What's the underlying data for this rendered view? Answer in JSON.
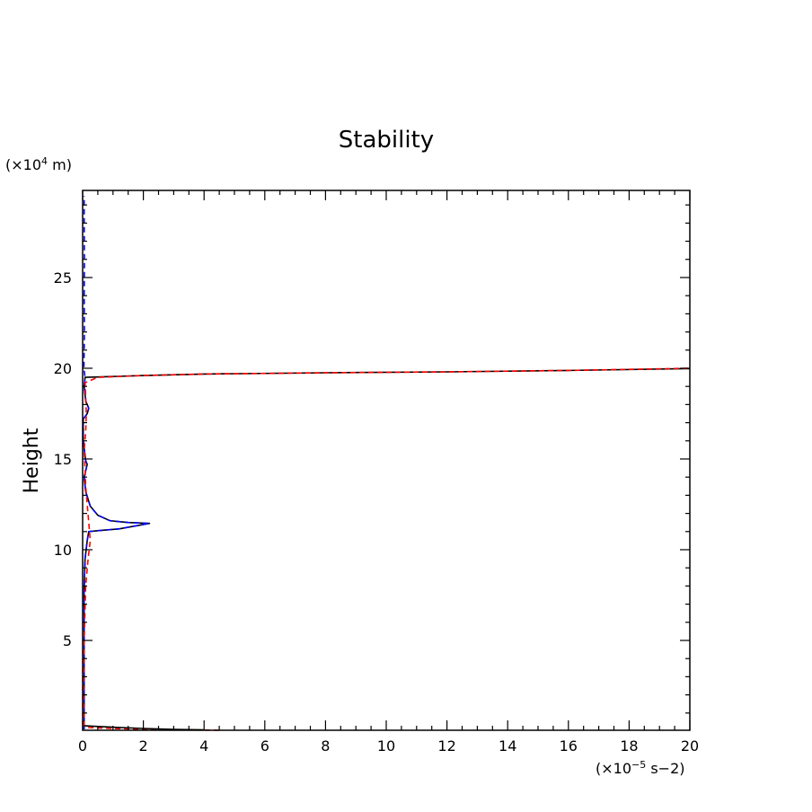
{
  "chart_data": {
    "type": "line",
    "title": "Stability",
    "xlabel": "",
    "ylabel": "Height",
    "x_unit_prefix": "(×10",
    "x_unit_exp": "−5",
    "x_unit_suffix": " s−2)",
    "y_unit_prefix": "(×10",
    "y_unit_exp": "4",
    "y_unit_suffix": " m)",
    "xlim": [
      0,
      20
    ],
    "ylim": [
      0.05,
      29.8
    ],
    "x_ticks": [
      {
        "v": 0,
        "t": "0"
      },
      {
        "v": 2,
        "t": "2"
      },
      {
        "v": 4,
        "t": "4"
      },
      {
        "v": 6,
        "t": "6"
      },
      {
        "v": 8,
        "t": "8"
      },
      {
        "v": 10,
        "t": "10"
      },
      {
        "v": 12,
        "t": "12"
      },
      {
        "v": 14,
        "t": "14"
      },
      {
        "v": 16,
        "t": "16"
      },
      {
        "v": 18,
        "t": "18"
      },
      {
        "v": 20,
        "t": "20"
      }
    ],
    "y_ticks": [
      {
        "v": 5,
        "t": "5"
      },
      {
        "v": 10,
        "t": "10"
      },
      {
        "v": 15,
        "t": "15"
      },
      {
        "v": 20,
        "t": "20"
      },
      {
        "v": 25,
        "t": "25"
      }
    ],
    "grid": false,
    "legend": "none",
    "series": [
      {
        "color": "#000000",
        "style": "solid",
        "points": [
          [
            0.05,
            0.1
          ],
          [
            0.05,
            7.8
          ],
          [
            0.08,
            9.5
          ],
          [
            0.15,
            10.5
          ],
          [
            0.2,
            11.0
          ],
          [
            0.5,
            11.05
          ],
          [
            1.2,
            11.15
          ],
          [
            2.2,
            11.45
          ],
          [
            1.5,
            11.5
          ],
          [
            0.9,
            11.6
          ],
          [
            0.5,
            11.9
          ],
          [
            0.25,
            12.4
          ],
          [
            0.1,
            13.2
          ],
          [
            0.05,
            14.0
          ],
          [
            0.15,
            14.7
          ],
          [
            0.1,
            14.9
          ],
          [
            0.02,
            16.0
          ],
          [
            0.02,
            17.2
          ],
          [
            0.15,
            17.5
          ],
          [
            0.2,
            17.8
          ],
          [
            0.1,
            18.2
          ],
          [
            0.05,
            19.0
          ],
          [
            0.08,
            19.5
          ],
          [
            0.5,
            19.52
          ],
          [
            2.0,
            19.6
          ],
          [
            4.0,
            19.68
          ],
          [
            8.0,
            19.75
          ],
          [
            12.0,
            19.8
          ],
          [
            16.0,
            19.88
          ],
          [
            20.0,
            19.98
          ]
        ]
      },
      {
        "color": "#0000ff",
        "style": "dashed",
        "points": [
          [
            0.05,
            0.1
          ],
          [
            0.05,
            7.8
          ],
          [
            0.08,
            9.5
          ],
          [
            0.15,
            10.5
          ],
          [
            0.2,
            11.0
          ],
          [
            0.5,
            11.05
          ],
          [
            1.2,
            11.15
          ],
          [
            2.2,
            11.45
          ],
          [
            1.5,
            11.5
          ],
          [
            0.9,
            11.6
          ],
          [
            0.5,
            11.9
          ],
          [
            0.25,
            12.4
          ],
          [
            0.1,
            13.2
          ],
          [
            0.05,
            14.0
          ],
          [
            0.15,
            14.7
          ],
          [
            0.1,
            14.9
          ],
          [
            0.02,
            16.0
          ],
          [
            0.02,
            17.2
          ],
          [
            0.15,
            17.5
          ],
          [
            0.2,
            17.8
          ],
          [
            0.1,
            18.2
          ],
          [
            0.05,
            19.0
          ],
          [
            0.08,
            19.5
          ],
          [
            0.04,
            20.0
          ],
          [
            0.06,
            22.0
          ],
          [
            0.05,
            24.0
          ],
          [
            0.06,
            26.0
          ],
          [
            0.05,
            28.0
          ],
          [
            0.05,
            29.5
          ]
        ]
      },
      {
        "color": "#ff0000",
        "style": "dashed",
        "points": [
          [
            4.5,
            0.05
          ],
          [
            2.0,
            0.1
          ],
          [
            1.0,
            0.15
          ],
          [
            0.2,
            0.2
          ],
          [
            0.05,
            0.3
          ],
          [
            0.03,
            2.0
          ],
          [
            0.05,
            5.0
          ],
          [
            0.1,
            8.0
          ],
          [
            0.18,
            9.5
          ],
          [
            0.25,
            10.5
          ],
          [
            0.2,
            11.5
          ],
          [
            0.15,
            12.5
          ],
          [
            0.1,
            13.5
          ],
          [
            0.08,
            14.5
          ],
          [
            0.05,
            15.5
          ],
          [
            0.1,
            16.5
          ],
          [
            0.12,
            17.5
          ],
          [
            0.1,
            18.5
          ],
          [
            0.08,
            19.2
          ],
          [
            0.5,
            19.5
          ],
          [
            2.0,
            19.6
          ],
          [
            4.0,
            19.68
          ],
          [
            8.0,
            19.75
          ],
          [
            12.0,
            19.8
          ],
          [
            16.0,
            19.88
          ],
          [
            20.0,
            20.0
          ]
        ]
      },
      {
        "color": "#000000",
        "style": "solid",
        "points": [
          [
            0.05,
            0.3
          ],
          [
            0.3,
            0.28
          ],
          [
            1.0,
            0.22
          ],
          [
            2.0,
            0.15
          ],
          [
            3.0,
            0.1
          ],
          [
            4.0,
            0.07
          ]
        ]
      }
    ]
  }
}
